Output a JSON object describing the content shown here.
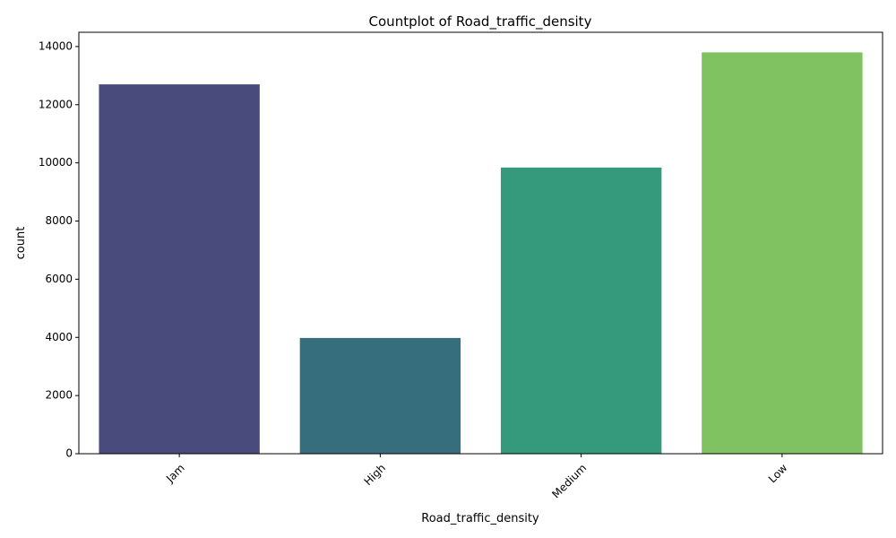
{
  "chart_data": {
    "type": "bar",
    "title": "Countplot of Road_traffic_density",
    "xlabel": "Road_traffic_density",
    "ylabel": "count",
    "categories": [
      "Jam",
      "High",
      "Medium",
      "Low"
    ],
    "values": [
      12700,
      3980,
      9840,
      13800
    ],
    "colors": [
      "#4a4b7d",
      "#376e7e",
      "#359a7c",
      "#80c262"
    ],
    "yticks": [
      0,
      2000,
      4000,
      6000,
      8000,
      10000,
      12000,
      14000
    ],
    "ylim": [
      0,
      14490
    ],
    "grid": false,
    "xtick_rotation": "45"
  }
}
